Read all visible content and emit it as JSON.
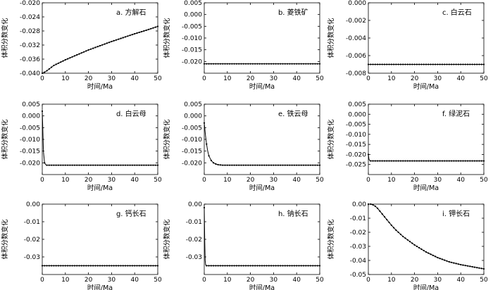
{
  "figure": {
    "xlabel": "时间/Ma",
    "ylabel": "体积分数变化"
  },
  "chart_data": [
    {
      "type": "line",
      "title": "a. 方解石",
      "xlabel": "时间/Ma",
      "ylabel": "体积分数变化",
      "xlim": [
        0,
        50
      ],
      "ylim": [
        -0.04,
        -0.02
      ],
      "xticks": [
        0,
        10,
        20,
        30,
        40,
        50
      ],
      "yticks": [
        -0.04,
        -0.036,
        -0.032,
        -0.028,
        -0.024,
        -0.02
      ],
      "ytick_labels": [
        "-0.040",
        "-0.036",
        "-0.032",
        "-0.028",
        "-0.024",
        "-0.020"
      ],
      "x": [
        0,
        0.5,
        1,
        2,
        3,
        4,
        5,
        7.5,
        10,
        15,
        20,
        25,
        30,
        35,
        40,
        45,
        50
      ],
      "y": [
        -0.04,
        -0.0399,
        -0.0397,
        -0.0393,
        -0.0388,
        -0.0383,
        -0.0378,
        -0.037,
        -0.0362,
        -0.0348,
        -0.0334,
        -0.0322,
        -0.031,
        -0.0299,
        -0.0288,
        -0.0278,
        -0.0267
      ]
    },
    {
      "type": "line",
      "title": "b. 菱铁矿",
      "xlabel": "时间/Ma",
      "ylabel": "体积分数变化",
      "xlim": [
        0,
        50
      ],
      "ylim": [
        -0.025,
        0.005
      ],
      "xticks": [
        0,
        10,
        20,
        30,
        40,
        50
      ],
      "yticks": [
        -0.02,
        -0.015,
        -0.01,
        -0.005,
        0.0,
        0.005
      ],
      "ytick_labels": [
        "-0.020",
        "-0.015",
        "-0.010",
        "-0.005",
        "0.000",
        "0.005"
      ],
      "x": [
        0,
        5,
        10,
        15,
        20,
        25,
        30,
        35,
        40,
        45,
        50
      ],
      "y": [
        -0.021,
        -0.021,
        -0.021,
        -0.021,
        -0.021,
        -0.021,
        -0.021,
        -0.021,
        -0.021,
        -0.021,
        -0.021
      ]
    },
    {
      "type": "line",
      "title": "c. 白云石",
      "xlabel": "时间/Ma",
      "ylabel": "体积分数变化",
      "xlim": [
        0,
        50
      ],
      "ylim": [
        -0.008,
        0.0
      ],
      "xticks": [
        0,
        10,
        20,
        30,
        40,
        50
      ],
      "yticks": [
        -0.008,
        -0.006,
        -0.004,
        -0.002,
        0.0
      ],
      "ytick_labels": [
        "-0.008",
        "-0.006",
        "-0.004",
        "-0.002",
        "0.000"
      ],
      "x": [
        0,
        5,
        10,
        15,
        20,
        25,
        30,
        35,
        40,
        45,
        50
      ],
      "y": [
        -0.007,
        -0.007,
        -0.007,
        -0.007,
        -0.007,
        -0.007,
        -0.007,
        -0.007,
        -0.007,
        -0.007,
        -0.007
      ]
    },
    {
      "type": "line",
      "title": "d. 白云母",
      "xlabel": "时间/Ma",
      "ylabel": "体积分数变化",
      "xlim": [
        0,
        50
      ],
      "ylim": [
        -0.025,
        0.005
      ],
      "xticks": [
        0,
        10,
        20,
        30,
        40,
        50
      ],
      "yticks": [
        -0.02,
        -0.015,
        -0.01,
        -0.005,
        0.0,
        0.005
      ],
      "ytick_labels": [
        "-0.020",
        "-0.015",
        "-0.010",
        "-0.005",
        "0.000",
        "0.005"
      ],
      "x": [
        0,
        0.25,
        0.5,
        1,
        1.5,
        2,
        3,
        5,
        10,
        20,
        30,
        40,
        50
      ],
      "y": [
        0.002,
        -0.006,
        -0.015,
        -0.02,
        -0.0208,
        -0.021,
        -0.021,
        -0.021,
        -0.021,
        -0.021,
        -0.021,
        -0.021,
        -0.021
      ]
    },
    {
      "type": "line",
      "title": "e. 铁云母",
      "xlabel": "时间/Ma",
      "ylabel": "体积分数变化",
      "xlim": [
        0,
        50
      ],
      "ylim": [
        -0.025,
        0.005
      ],
      "xticks": [
        0,
        10,
        20,
        30,
        40,
        50
      ],
      "yticks": [
        -0.02,
        -0.015,
        -0.01,
        -0.005,
        0.0,
        0.005
      ],
      "ytick_labels": [
        "-0.020",
        "-0.015",
        "-0.010",
        "-0.005",
        "0.000",
        "0.005"
      ],
      "x": [
        0,
        0.5,
        1,
        1.5,
        2,
        3,
        4,
        5,
        6,
        8,
        10,
        20,
        30,
        40,
        50
      ],
      "y": [
        -0.003,
        -0.008,
        -0.012,
        -0.015,
        -0.017,
        -0.019,
        -0.02,
        -0.0205,
        -0.0208,
        -0.021,
        -0.021,
        -0.021,
        -0.021,
        -0.021,
        -0.021
      ]
    },
    {
      "type": "line",
      "title": "f. 绿泥石",
      "xlabel": "时间/Ma",
      "ylabel": "体积分数变化",
      "xlim": [
        0,
        50
      ],
      "ylim": [
        -0.03,
        0.005
      ],
      "xticks": [
        0,
        10,
        20,
        30,
        40,
        50
      ],
      "yticks": [
        -0.025,
        -0.02,
        -0.015,
        -0.01,
        -0.005,
        0.0,
        0.005
      ],
      "ytick_labels": [
        "-0.025",
        "-0.020",
        "-0.015",
        "-0.010",
        "-0.005",
        "0.000",
        "0.005"
      ],
      "x": [
        0,
        0.3,
        0.6,
        1,
        5,
        10,
        15,
        20,
        25,
        30,
        35,
        40,
        45,
        50
      ],
      "y": [
        -0.02,
        -0.0225,
        -0.023,
        -0.0232,
        -0.0232,
        -0.0232,
        -0.0232,
        -0.0232,
        -0.0232,
        -0.0232,
        -0.0232,
        -0.0232,
        -0.0232,
        -0.0232
      ]
    },
    {
      "type": "line",
      "title": "g. 钙长石",
      "xlabel": "时间/Ma",
      "ylabel": "体积分数变化",
      "xlim": [
        0,
        50
      ],
      "ylim": [
        -0.04,
        0.0
      ],
      "xticks": [
        0,
        10,
        20,
        30,
        40,
        50
      ],
      "yticks": [
        -0.03,
        -0.02,
        -0.01,
        0.0
      ],
      "ytick_labels": [
        "-0.03",
        "-0.02",
        "-0.01",
        "0.00"
      ],
      "x": [
        0,
        5,
        10,
        15,
        20,
        25,
        30,
        35,
        40,
        45,
        50
      ],
      "y": [
        -0.035,
        -0.035,
        -0.035,
        -0.035,
        -0.035,
        -0.035,
        -0.035,
        -0.035,
        -0.035,
        -0.035,
        -0.035
      ]
    },
    {
      "type": "line",
      "title": "h. 钠长石",
      "xlabel": "时间/Ma",
      "ylabel": "体积分数变化",
      "xlim": [
        0,
        50
      ],
      "ylim": [
        -0.04,
        0.0
      ],
      "xticks": [
        0,
        10,
        20,
        30,
        40,
        50
      ],
      "yticks": [
        -0.03,
        -0.02,
        -0.01,
        0.0
      ],
      "ytick_labels": [
        "-0.03",
        "-0.02",
        "-0.01",
        "0.00"
      ],
      "x": [
        0,
        0.2,
        0.4,
        0.6,
        1,
        5,
        10,
        15,
        20,
        25,
        30,
        35,
        40,
        45,
        50
      ],
      "y": [
        -0.002,
        -0.02,
        -0.032,
        -0.0345,
        -0.035,
        -0.035,
        -0.035,
        -0.035,
        -0.035,
        -0.035,
        -0.035,
        -0.035,
        -0.035,
        -0.035,
        -0.035
      ]
    },
    {
      "type": "line",
      "title": "i. 钾长石",
      "xlabel": "时间/Ma",
      "ylabel": "体积分数变化",
      "xlim": [
        0,
        50
      ],
      "ylim": [
        -0.05,
        0.0
      ],
      "xticks": [
        0,
        10,
        20,
        30,
        40,
        50
      ],
      "yticks": [
        -0.05,
        -0.04,
        -0.03,
        -0.02,
        -0.01,
        0.0
      ],
      "ytick_labels": [
        "-0.05",
        "-0.04",
        "-0.03",
        "-0.02",
        "-0.01",
        "0.00"
      ],
      "x": [
        0,
        1,
        2,
        3,
        4,
        5,
        6,
        8,
        10,
        12,
        15,
        20,
        25,
        30,
        35,
        40,
        45,
        50
      ],
      "y": [
        0.0,
        0.0,
        -0.0005,
        -0.0015,
        -0.003,
        -0.005,
        -0.007,
        -0.011,
        -0.015,
        -0.0185,
        -0.023,
        -0.029,
        -0.034,
        -0.038,
        -0.041,
        -0.043,
        -0.0445,
        -0.046
      ]
    }
  ]
}
